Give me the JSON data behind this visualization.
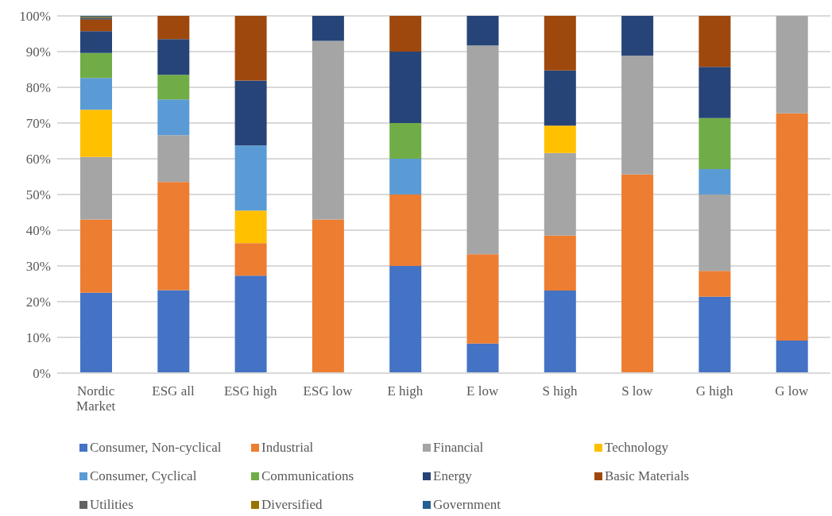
{
  "chart_data": {
    "type": "bar",
    "stacked": true,
    "categories": [
      "Nordic Market",
      "ESG all",
      "ESG high",
      "ESG low",
      "E high",
      "E low",
      "S high",
      "S low",
      "G high",
      "G low"
    ],
    "series": [
      {
        "name": "Consumer, Non-cyclical",
        "color": "#4472c4",
        "values": [
          22.5,
          23.2,
          27.3,
          0,
          30.0,
          8.3,
          23.1,
          0,
          21.4,
          9.1
        ]
      },
      {
        "name": "Industrial",
        "color": "#ed7d31",
        "values": [
          20.5,
          30.3,
          9.1,
          43.0,
          20.0,
          25.0,
          15.4,
          55.6,
          7.2,
          63.6
        ]
      },
      {
        "name": "Financial",
        "color": "#a5a5a5",
        "values": [
          17.5,
          13.1,
          0,
          50.0,
          0,
          58.4,
          23.1,
          33.3,
          21.4,
          27.3
        ]
      },
      {
        "name": "Technology",
        "color": "#ffc000",
        "values": [
          13.2,
          0,
          9.1,
          0,
          0,
          0,
          7.7,
          0,
          0,
          0
        ]
      },
      {
        "name": "Consumer, Cyclical",
        "color": "#5b9bd5",
        "values": [
          8.9,
          10.0,
          18.2,
          0,
          10.0,
          0,
          0,
          0,
          7.1,
          0
        ]
      },
      {
        "name": "Communications",
        "color": "#70ad47",
        "values": [
          7.0,
          6.9,
          0,
          0,
          10.0,
          0,
          0,
          0,
          14.3,
          0
        ]
      },
      {
        "name": "Energy",
        "color": "#264478",
        "values": [
          6.1,
          10.0,
          18.2,
          7.0,
          20.0,
          8.3,
          15.4,
          11.1,
          14.3,
          0
        ]
      },
      {
        "name": "Basic Materials",
        "color": "#9e480e",
        "values": [
          3.2,
          6.5,
          18.1,
          0,
          10.0,
          0,
          15.3,
          0,
          14.3,
          0
        ]
      },
      {
        "name": "Utilities",
        "color": "#636363",
        "values": [
          0.7,
          0,
          0,
          0,
          0,
          0,
          0,
          0,
          0,
          0
        ]
      },
      {
        "name": "Diversified",
        "color": "#997300",
        "values": [
          0.2,
          0,
          0,
          0,
          0,
          0,
          0,
          0,
          0,
          0
        ]
      },
      {
        "name": "Government",
        "color": "#255e91",
        "values": [
          0.2,
          0,
          0,
          0,
          0,
          0,
          0,
          0,
          0,
          0
        ]
      }
    ],
    "ylim": [
      0,
      100
    ],
    "yticks": [
      {
        "value": 0,
        "label": "0%"
      },
      {
        "value": 10,
        "label": "10%"
      },
      {
        "value": 20,
        "label": "20%"
      },
      {
        "value": 30,
        "label": "30%"
      },
      {
        "value": 40,
        "label": "40%"
      },
      {
        "value": 50,
        "label": "50%"
      },
      {
        "value": 60,
        "label": "60%"
      },
      {
        "value": 70,
        "label": "70%"
      },
      {
        "value": 80,
        "label": "80%"
      },
      {
        "value": 90,
        "label": "90%"
      },
      {
        "value": 100,
        "label": "100%"
      }
    ],
    "grid": "y",
    "legend": "bottom"
  }
}
